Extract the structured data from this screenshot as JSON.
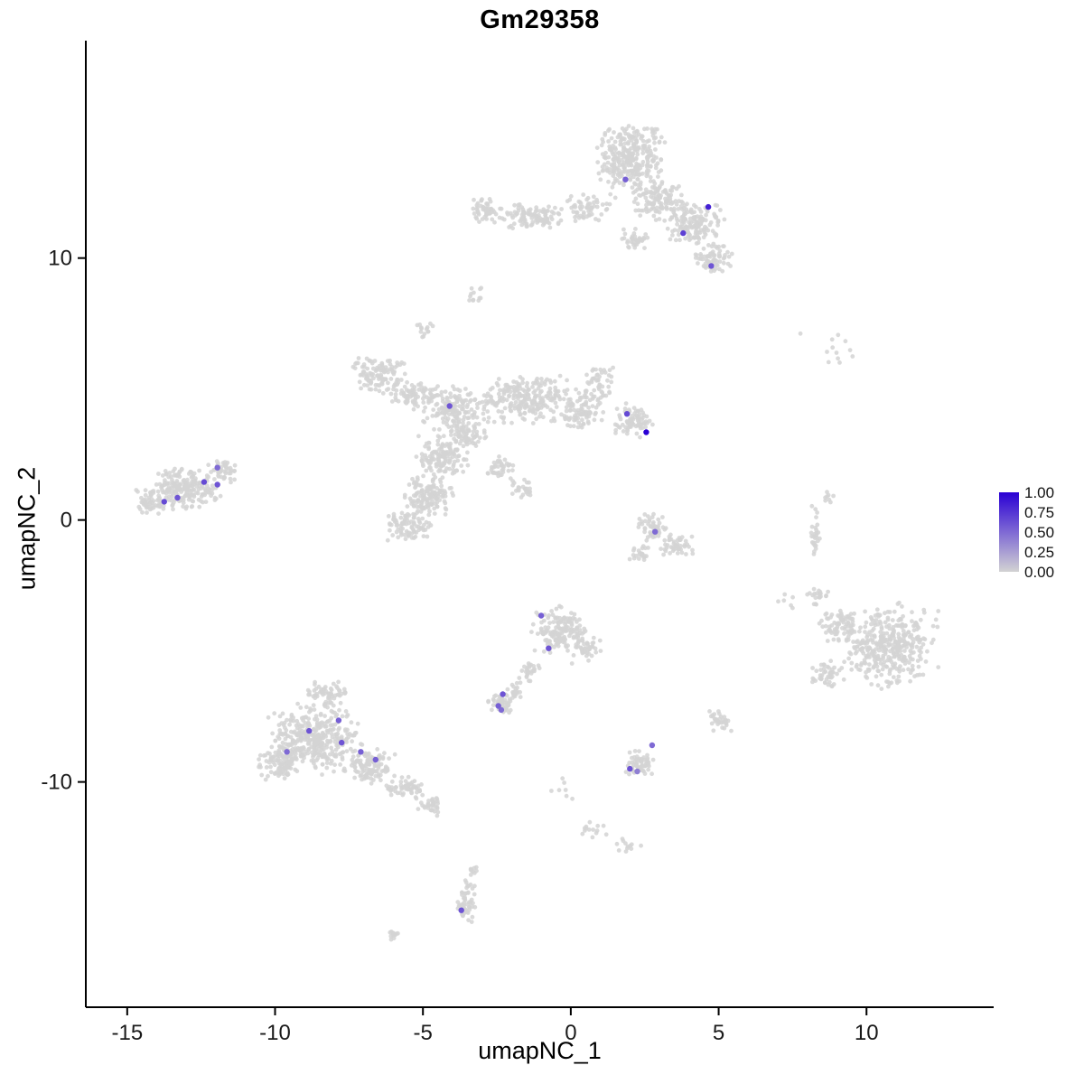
{
  "chart_data": {
    "type": "scatter",
    "title": "Gm29358",
    "xlabel": "umapNC_1",
    "ylabel": "umapNC_2",
    "xlim": [
      -16.4,
      14.3
    ],
    "ylim": [
      -18.6,
      18.3
    ],
    "x_ticks": [
      -15,
      -10,
      -5,
      0,
      5,
      10
    ],
    "y_ticks": [
      -10,
      0,
      10
    ],
    "grid": false,
    "colorbar": {
      "labels": [
        "1.00",
        "0.75",
        "0.50",
        "0.25",
        "0.00"
      ],
      "low_color": "#d3d3d3",
      "high_color": "#2a00d4",
      "position": "right"
    },
    "background_clusters": [
      {
        "x": 2.0,
        "y": 13.9,
        "sx": 1.25,
        "sy": 1.3,
        "n": 300
      },
      {
        "x": 2.9,
        "y": 12.3,
        "sx": 1.0,
        "sy": 0.9,
        "n": 130
      },
      {
        "x": 4.2,
        "y": 11.3,
        "sx": 1.0,
        "sy": 0.85,
        "n": 150
      },
      {
        "x": 4.8,
        "y": 10.0,
        "sx": 0.7,
        "sy": 0.6,
        "n": 70
      },
      {
        "x": -1.4,
        "y": 11.6,
        "sx": 1.3,
        "sy": 0.55,
        "n": 110
      },
      {
        "x": -2.9,
        "y": 11.8,
        "sx": 0.5,
        "sy": 0.5,
        "n": 50
      },
      {
        "x": 0.6,
        "y": 11.9,
        "sx": 1.0,
        "sy": 0.6,
        "n": 60
      },
      {
        "x": 2.2,
        "y": 10.7,
        "sx": 0.5,
        "sy": 0.5,
        "n": 35
      },
      {
        "x": -3.2,
        "y": 8.6,
        "sx": 0.35,
        "sy": 0.4,
        "n": 12
      },
      {
        "x": -4.9,
        "y": 7.3,
        "sx": 0.4,
        "sy": 0.35,
        "n": 14
      },
      {
        "x": -1.5,
        "y": 4.6,
        "sx": 1.7,
        "sy": 1.0,
        "n": 240
      },
      {
        "x": -4.0,
        "y": 4.3,
        "sx": 1.2,
        "sy": 0.9,
        "n": 160
      },
      {
        "x": -6.5,
        "y": 5.6,
        "sx": 1.0,
        "sy": 0.8,
        "n": 110
      },
      {
        "x": -5.4,
        "y": 4.8,
        "sx": 0.8,
        "sy": 0.6,
        "n": 70
      },
      {
        "x": 0.4,
        "y": 4.2,
        "sx": 0.8,
        "sy": 0.8,
        "n": 90
      },
      {
        "x": 1.0,
        "y": 5.2,
        "sx": 0.6,
        "sy": 0.8,
        "n": 50
      },
      {
        "x": 2.1,
        "y": 3.8,
        "sx": 0.7,
        "sy": 0.7,
        "n": 80
      },
      {
        "x": -3.5,
        "y": 3.3,
        "sx": 0.7,
        "sy": 0.6,
        "n": 70
      },
      {
        "x": -4.3,
        "y": 2.4,
        "sx": 0.95,
        "sy": 0.9,
        "n": 140
      },
      {
        "x": -4.8,
        "y": 1.0,
        "sx": 0.95,
        "sy": 0.9,
        "n": 140
      },
      {
        "x": -5.5,
        "y": -0.2,
        "sx": 0.8,
        "sy": 0.6,
        "n": 90
      },
      {
        "x": -2.4,
        "y": 2.0,
        "sx": 0.55,
        "sy": 0.45,
        "n": 40
      },
      {
        "x": -1.7,
        "y": 1.2,
        "sx": 0.45,
        "sy": 0.4,
        "n": 25
      },
      {
        "x": -13.0,
        "y": 1.2,
        "sx": 1.3,
        "sy": 0.85,
        "n": 200
      },
      {
        "x": -14.2,
        "y": 0.7,
        "sx": 0.6,
        "sy": 0.5,
        "n": 55
      },
      {
        "x": -11.8,
        "y": 1.9,
        "sx": 0.6,
        "sy": 0.5,
        "n": 45
      },
      {
        "x": 2.8,
        "y": -0.3,
        "sx": 0.6,
        "sy": 0.6,
        "n": 55
      },
      {
        "x": 3.6,
        "y": -1.0,
        "sx": 0.6,
        "sy": 0.5,
        "n": 45
      },
      {
        "x": 2.4,
        "y": -1.3,
        "sx": 0.45,
        "sy": 0.4,
        "n": 22
      },
      {
        "x": 8.6,
        "y": 6.4,
        "sx": 1.3,
        "sy": 0.8,
        "n": 12
      },
      {
        "x": 8.3,
        "y": -0.4,
        "sx": 0.18,
        "sy": 1.1,
        "n": 28
      },
      {
        "x": 8.7,
        "y": 0.9,
        "sx": 0.25,
        "sy": 0.35,
        "n": 8
      },
      {
        "x": 10.8,
        "y": -4.8,
        "sx": 1.7,
        "sy": 1.7,
        "n": 380
      },
      {
        "x": 9.1,
        "y": -4.0,
        "sx": 0.8,
        "sy": 0.7,
        "n": 70
      },
      {
        "x": 8.6,
        "y": -5.9,
        "sx": 0.65,
        "sy": 0.6,
        "n": 45
      },
      {
        "x": 8.4,
        "y": -2.9,
        "sx": 0.45,
        "sy": 0.45,
        "n": 20
      },
      {
        "x": 7.3,
        "y": -3.1,
        "sx": 0.5,
        "sy": 0.6,
        "n": 6
      },
      {
        "x": -0.4,
        "y": -4.2,
        "sx": 0.95,
        "sy": 0.95,
        "n": 160
      },
      {
        "x": 0.5,
        "y": -4.9,
        "sx": 0.55,
        "sy": 0.6,
        "n": 45
      },
      {
        "x": -1.4,
        "y": -5.8,
        "sx": 0.4,
        "sy": 0.5,
        "n": 28
      },
      {
        "x": -1.9,
        "y": -6.5,
        "sx": 0.3,
        "sy": 0.4,
        "n": 20
      },
      {
        "x": -2.4,
        "y": -7.0,
        "sx": 0.5,
        "sy": 0.4,
        "n": 55
      },
      {
        "x": -8.7,
        "y": -8.3,
        "sx": 1.75,
        "sy": 1.45,
        "n": 380
      },
      {
        "x": -9.9,
        "y": -9.3,
        "sx": 0.8,
        "sy": 0.7,
        "n": 90
      },
      {
        "x": -6.8,
        "y": -9.4,
        "sx": 0.9,
        "sy": 0.7,
        "n": 110
      },
      {
        "x": -5.6,
        "y": -10.2,
        "sx": 0.7,
        "sy": 0.5,
        "n": 60
      },
      {
        "x": -4.8,
        "y": -10.9,
        "sx": 0.5,
        "sy": 0.4,
        "n": 35
      },
      {
        "x": -8.2,
        "y": -6.6,
        "sx": 0.9,
        "sy": 0.5,
        "n": 60
      },
      {
        "x": 2.4,
        "y": -9.3,
        "sx": 0.55,
        "sy": 0.55,
        "n": 60
      },
      {
        "x": 5.0,
        "y": -7.6,
        "sx": 0.45,
        "sy": 0.5,
        "n": 32
      },
      {
        "x": 0.8,
        "y": -11.9,
        "sx": 0.55,
        "sy": 0.45,
        "n": 14
      },
      {
        "x": 1.9,
        "y": -12.4,
        "sx": 0.5,
        "sy": 0.35,
        "n": 12
      },
      {
        "x": -0.2,
        "y": -10.3,
        "sx": 0.5,
        "sy": 0.8,
        "n": 7
      },
      {
        "x": -3.5,
        "y": -14.6,
        "sx": 0.35,
        "sy": 0.95,
        "n": 55
      },
      {
        "x": -3.3,
        "y": -13.4,
        "sx": 0.25,
        "sy": 0.3,
        "n": 9
      },
      {
        "x": -6.0,
        "y": -15.8,
        "sx": 0.3,
        "sy": 0.25,
        "n": 11
      }
    ],
    "expressing_cells": [
      {
        "x": 1.85,
        "y": 13.0,
        "level": 0.55
      },
      {
        "x": 4.65,
        "y": 11.95,
        "level": 0.85
      },
      {
        "x": 3.8,
        "y": 10.95,
        "level": 0.7
      },
      {
        "x": 4.75,
        "y": 9.7,
        "level": 0.6
      },
      {
        "x": -4.1,
        "y": 4.35,
        "level": 0.6
      },
      {
        "x": 1.9,
        "y": 4.05,
        "level": 0.65
      },
      {
        "x": 2.55,
        "y": 3.35,
        "level": 1.0
      },
      {
        "x": 2.85,
        "y": -0.45,
        "level": 0.5
      },
      {
        "x": -13.75,
        "y": 0.7,
        "level": 0.65
      },
      {
        "x": -13.3,
        "y": 0.85,
        "level": 0.6
      },
      {
        "x": -12.4,
        "y": 1.45,
        "level": 0.65
      },
      {
        "x": -11.95,
        "y": 2.0,
        "level": 0.5
      },
      {
        "x": -11.95,
        "y": 1.35,
        "level": 0.6
      },
      {
        "x": -1.0,
        "y": -3.65,
        "level": 0.55
      },
      {
        "x": -0.75,
        "y": -4.9,
        "level": 0.6
      },
      {
        "x": -2.3,
        "y": -6.65,
        "level": 0.6
      },
      {
        "x": -2.45,
        "y": -7.1,
        "level": 0.55
      },
      {
        "x": -2.35,
        "y": -7.25,
        "level": 0.5
      },
      {
        "x": -9.6,
        "y": -8.85,
        "level": 0.5
      },
      {
        "x": -8.85,
        "y": -8.05,
        "level": 0.6
      },
      {
        "x": -7.85,
        "y": -7.65,
        "level": 0.55
      },
      {
        "x": -7.75,
        "y": -8.5,
        "level": 0.6
      },
      {
        "x": -7.1,
        "y": -8.85,
        "level": 0.55
      },
      {
        "x": -6.6,
        "y": -9.15,
        "level": 0.55
      },
      {
        "x": 2.0,
        "y": -9.5,
        "level": 0.6
      },
      {
        "x": 2.25,
        "y": -9.6,
        "level": 0.4
      },
      {
        "x": 2.75,
        "y": -8.6,
        "level": 0.5
      },
      {
        "x": -3.7,
        "y": -14.9,
        "level": 0.6
      }
    ]
  }
}
